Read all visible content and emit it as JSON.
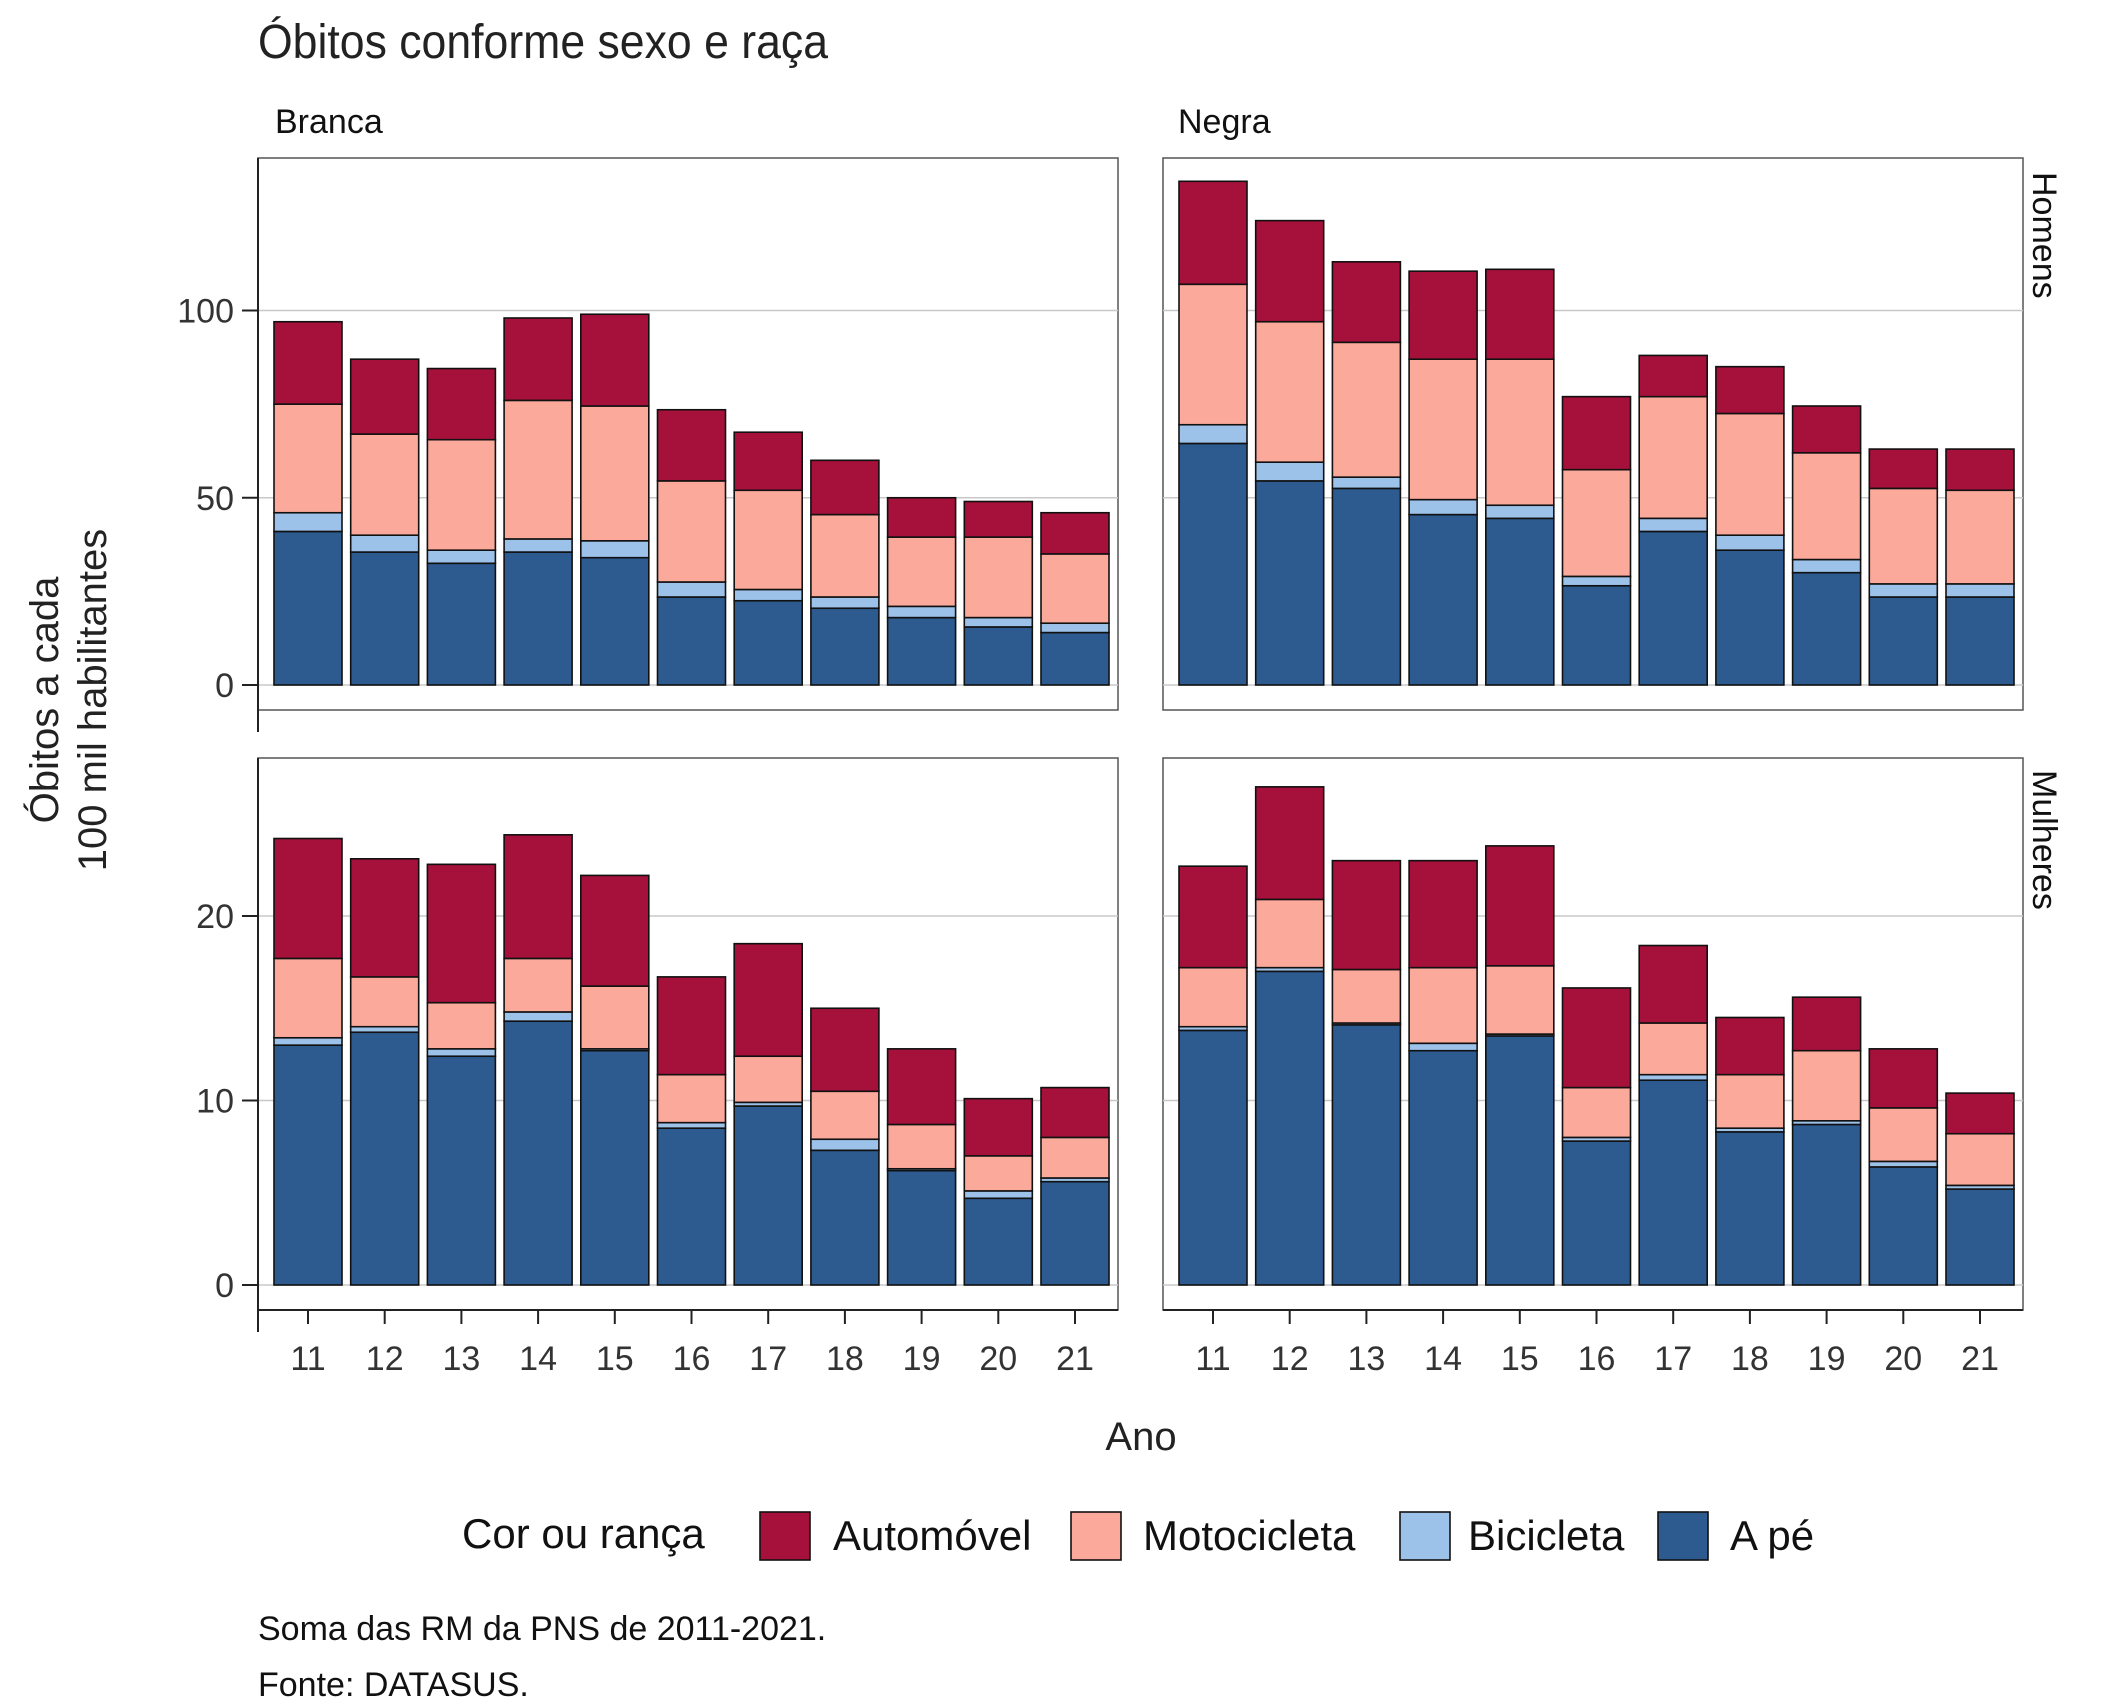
{
  "chart_data": {
    "type": "bar",
    "stacked": true,
    "title": "Óbitos conforme sexo e raça",
    "xlabel": "Ano",
    "ylabel_lines": [
      "Óbitos a cada",
      "100 mil habilitantes"
    ],
    "categories": [
      "11",
      "12",
      "13",
      "14",
      "15",
      "16",
      "17",
      "18",
      "19",
      "20",
      "21"
    ],
    "column_labels": [
      "Branca",
      "Negra"
    ],
    "row_labels": [
      "Homens",
      "Mulheres"
    ],
    "legend": {
      "title": "Cor ou rança",
      "position": "bottom",
      "entries": [
        "Automóvel",
        "Motocicleta",
        "Bicicleta",
        "A pé"
      ]
    },
    "stack_order": [
      "A pé",
      "Bicicleta",
      "Motocicleta",
      "Automóvel"
    ],
    "colors": {
      "Automóvel": "#A6113B",
      "Motocicleta": "#FBA99B",
      "Bicicleta": "#9DC2EA",
      "A pé": "#2D5A8F"
    },
    "grid": true,
    "rows": [
      {
        "row": "Homens",
        "ylim": [
          0,
          140
        ],
        "yticks": [
          0,
          50,
          100
        ],
        "panels": [
          {
            "column": "Branca",
            "series": [
              {
                "name": "A pé",
                "values": [
                  41,
                  35.5,
                  32.5,
                  35.5,
                  34,
                  23.5,
                  22.5,
                  20.5,
                  18,
                  15.5,
                  14
                ]
              },
              {
                "name": "Bicicleta",
                "values": [
                  5,
                  4.5,
                  3.5,
                  3.5,
                  4.5,
                  4,
                  3,
                  3,
                  3,
                  2.5,
                  2.5
                ]
              },
              {
                "name": "Motocicleta",
                "values": [
                  29,
                  27,
                  29.5,
                  37,
                  36,
                  27,
                  26.5,
                  22,
                  18.5,
                  21.5,
                  18.5
                ]
              },
              {
                "name": "Automóvel",
                "values": [
                  22,
                  20,
                  19,
                  22,
                  24.5,
                  19,
                  15.5,
                  14.5,
                  10.5,
                  9.5,
                  11
                ]
              }
            ]
          },
          {
            "column": "Negra",
            "series": [
              {
                "name": "A pé",
                "values": [
                  64.5,
                  54.5,
                  52.5,
                  45.5,
                  44.5,
                  26.5,
                  41,
                  36,
                  30,
                  23.5,
                  23.5
                ]
              },
              {
                "name": "Bicicleta",
                "values": [
                  5,
                  5,
                  3,
                  4,
                  3.5,
                  2.5,
                  3.5,
                  4,
                  3.5,
                  3.5,
                  3.5
                ]
              },
              {
                "name": "Motocicleta",
                "values": [
                  37.5,
                  37.5,
                  36,
                  37.5,
                  39,
                  28.5,
                  32.5,
                  32.5,
                  28.5,
                  25.5,
                  25
                ]
              },
              {
                "name": "Automóvel",
                "values": [
                  27.5,
                  27,
                  21.5,
                  23.5,
                  24,
                  19.5,
                  11,
                  12.5,
                  12.5,
                  10.5,
                  11
                ]
              }
            ]
          }
        ]
      },
      {
        "row": "Mulheres",
        "ylim": [
          0,
          28
        ],
        "yticks": [
          0,
          10,
          20
        ],
        "panels": [
          {
            "column": "Branca",
            "series": [
              {
                "name": "A pé",
                "values": [
                  13,
                  13.7,
                  12.4,
                  14.3,
                  12.7,
                  8.5,
                  9.7,
                  7.3,
                  6.2,
                  4.7,
                  5.6
                ]
              },
              {
                "name": "Bicicleta",
                "values": [
                  0.4,
                  0.3,
                  0.4,
                  0.5,
                  0.1,
                  0.3,
                  0.2,
                  0.6,
                  0.1,
                  0.4,
                  0.2
                ]
              },
              {
                "name": "Motocicleta",
                "values": [
                  4.3,
                  2.7,
                  2.5,
                  2.9,
                  3.4,
                  2.6,
                  2.5,
                  2.6,
                  2.4,
                  1.9,
                  2.2
                ]
              },
              {
                "name": "Automóvel",
                "values": [
                  6.5,
                  6.4,
                  7.5,
                  6.7,
                  6,
                  5.3,
                  6.1,
                  4.5,
                  4.1,
                  3.1,
                  2.7
                ]
              }
            ]
          },
          {
            "column": "Negra",
            "series": [
              {
                "name": "A pé",
                "values": [
                  13.8,
                  17,
                  14.1,
                  12.7,
                  13.5,
                  7.8,
                  11.1,
                  8.3,
                  8.7,
                  6.4,
                  5.2
                ]
              },
              {
                "name": "Bicicleta",
                "values": [
                  0.2,
                  0.2,
                  0.1,
                  0.4,
                  0.1,
                  0.2,
                  0.3,
                  0.2,
                  0.2,
                  0.3,
                  0.2
                ]
              },
              {
                "name": "Motocicleta",
                "values": [
                  3.2,
                  3.7,
                  2.9,
                  4.1,
                  3.7,
                  2.7,
                  2.8,
                  2.9,
                  3.8,
                  2.9,
                  2.8
                ]
              },
              {
                "name": "Automóvel",
                "values": [
                  5.5,
                  6.1,
                  5.9,
                  5.8,
                  6.5,
                  5.4,
                  4.2,
                  3.1,
                  2.9,
                  3.2,
                  2.2
                ]
              }
            ]
          }
        ]
      }
    ],
    "notes": [
      "Soma das RM da PNS de 2011-2021.",
      "Fonte: DATASUS."
    ]
  }
}
